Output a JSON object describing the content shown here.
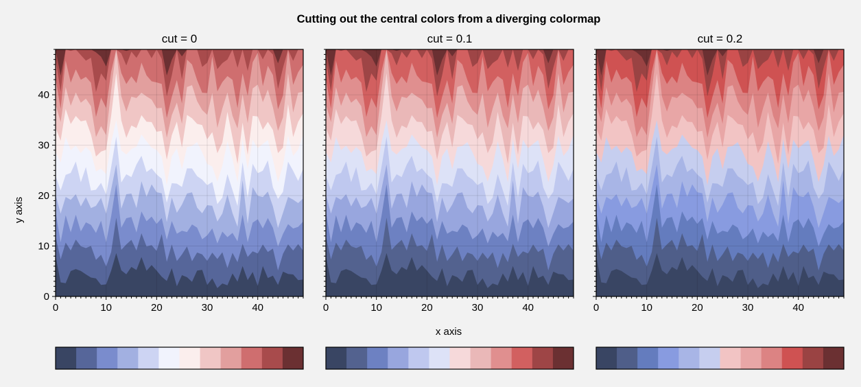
{
  "chart_data": {
    "type": "contourf",
    "suptitle": "Cutting out the central colors from a diverging colormap",
    "xlabel": "x axis",
    "ylabel": "y axis",
    "xlim": [
      0,
      49
    ],
    "ylim": [
      0,
      49
    ],
    "xticks": [
      0,
      10,
      20,
      30,
      40
    ],
    "yticks": [
      0,
      10,
      20,
      30,
      40
    ],
    "grid": true,
    "colorbar_location": "bottom",
    "panels": [
      {
        "title": "cut = 0",
        "cut": 0,
        "colors": [
          "#394563",
          "#56669a",
          "#7a8ccd",
          "#a2b0e1",
          "#cdd4f3",
          "#f1f3fd",
          "#fbeeed",
          "#f0c6c5",
          "#e29f9e",
          "#cf6e6f",
          "#a84b4c",
          "#6b3032"
        ]
      },
      {
        "title": "cut = 0.1",
        "cut": 0.1,
        "colors": [
          "#394563",
          "#53628f",
          "#6d81c2",
          "#98a6de",
          "#bfc8ef",
          "#dde2f7",
          "#f6d9da",
          "#eab8b8",
          "#e08f8f",
          "#d26060",
          "#9e4546",
          "#6b3032"
        ]
      },
      {
        "title": "cut = 0.2",
        "cut": 0.2,
        "colors": [
          "#394563",
          "#4f5e89",
          "#647cbe",
          "#889be0",
          "#a8b5e6",
          "#c6ceef",
          "#f2c4c4",
          "#e8a6a6",
          "#dc8383",
          "#cf5252",
          "#9a4343",
          "#6b3032"
        ]
      }
    ]
  }
}
